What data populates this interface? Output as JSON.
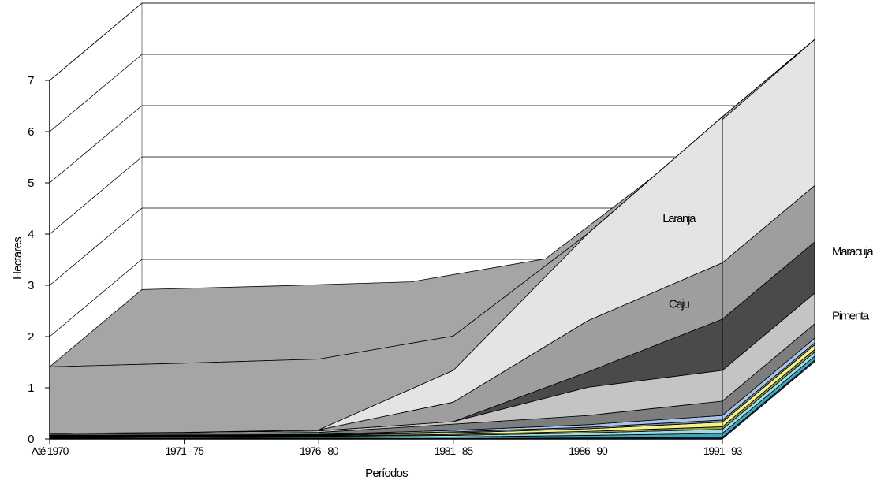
{
  "chart_data": {
    "type": "area",
    "style": "3d-stacked",
    "categories": [
      "Até 1970",
      "1971 - 75",
      "1976 - 80",
      "1981 - 85",
      "1986 - 90",
      "1991 - 93"
    ],
    "ylabel": "Hectares",
    "xlabel": "Períodos",
    "ylim": [
      0,
      7
    ],
    "yticks": [
      "0",
      "1",
      "2",
      "3",
      "4",
      "5",
      "6",
      "7"
    ],
    "grid": true,
    "series": [
      {
        "key": "s1",
        "color": "#1a3a70",
        "values": [
          0.01,
          0.01,
          0.01,
          0.01,
          0.02,
          0.03
        ]
      },
      {
        "key": "s2",
        "color": "#3ba7b8",
        "values": [
          0.01,
          0.01,
          0.02,
          0.03,
          0.05,
          0.08
        ]
      },
      {
        "key": "s3",
        "color": "#9fdbe3",
        "values": [
          0.01,
          0.02,
          0.02,
          0.03,
          0.05,
          0.08
        ]
      },
      {
        "key": "s4",
        "color": "#9a9a4a",
        "values": [
          0.01,
          0.01,
          0.01,
          0.02,
          0.03,
          0.05
        ]
      },
      {
        "key": "s5",
        "color": "#f2f28a",
        "values": [
          0.01,
          0.01,
          0.01,
          0.03,
          0.05,
          0.09
        ]
      },
      {
        "key": "s6",
        "color": "#7a8aa8",
        "values": [
          0.01,
          0.01,
          0.01,
          0.02,
          0.03,
          0.04
        ]
      },
      {
        "key": "s7",
        "color": "#a9c4e6",
        "values": [
          0.01,
          0.01,
          0.01,
          0.03,
          0.05,
          0.09
        ]
      },
      {
        "key": "s8",
        "color": "#7d7d7d",
        "values": [
          0.02,
          0.03,
          0.04,
          0.12,
          0.18,
          0.28
        ]
      },
      {
        "key": "pimenta",
        "name": "Pimenta",
        "color": "#c4c4c4",
        "values": [
          0.02,
          0.02,
          0.03,
          0.05,
          0.55,
          0.6
        ]
      },
      {
        "key": "maracuja",
        "name": "Maracuja",
        "color": "#4a4a4a",
        "values": [
          0.0,
          0.0,
          0.0,
          0.0,
          0.3,
          1.0
        ]
      },
      {
        "key": "caju",
        "name": "Caju",
        "color": "#9e9e9e",
        "values": [
          0.0,
          0.0,
          0.02,
          0.38,
          1.0,
          1.1
        ]
      },
      {
        "key": "laranja",
        "name": "Laranja",
        "color": "#e4e4e4",
        "values": [
          0.0,
          0.0,
          0.0,
          0.62,
          1.7,
          2.85
        ]
      },
      {
        "key": "s13",
        "color": "#a5a5a5",
        "values": [
          1.3,
          1.35,
          1.38,
          0.67,
          0.0,
          0.0
        ]
      }
    ],
    "labels": [
      {
        "series": "laranja",
        "text": "Laranja"
      },
      {
        "series": "caju",
        "text": "Caju"
      },
      {
        "series": "maracuja",
        "text": "Maracuja"
      },
      {
        "series": "pimenta",
        "text": "Pimenta"
      }
    ]
  }
}
